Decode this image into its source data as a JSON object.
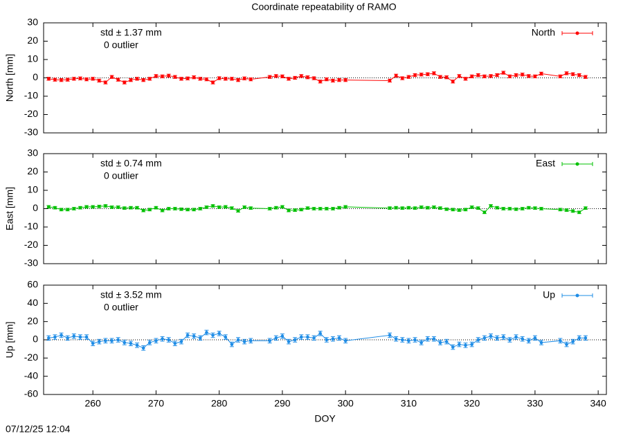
{
  "title": "Coordinate repeatability of RAMO",
  "timestamp": "07/12/25 12:04",
  "chart_data": [
    {
      "type": "errorbar-line",
      "ylabel": "North [mm]",
      "annotation": "std ± 1.37 mm",
      "outliers": "0 outlier",
      "xlim": [
        252.2,
        341.3
      ],
      "xticks": [
        260,
        270,
        280,
        290,
        300,
        310,
        320,
        330,
        340
      ],
      "xtick_labels": false,
      "ylim": [
        -30,
        30
      ],
      "yticks": [
        -30,
        -20,
        -10,
        0,
        10,
        20,
        30
      ],
      "zero_line": true,
      "legend": "top-right",
      "x": [
        253,
        254,
        255,
        256,
        257,
        258,
        259,
        260,
        261,
        262,
        263,
        264,
        265,
        266,
        267,
        268,
        269,
        270,
        271,
        272,
        273,
        274,
        275,
        276,
        277,
        278,
        279,
        280,
        281,
        282,
        283,
        284,
        285,
        288,
        289,
        290,
        291,
        292,
        293,
        294,
        295,
        296,
        297,
        298,
        299,
        300,
        307,
        308,
        309,
        310,
        311,
        312,
        313,
        314,
        315,
        316,
        317,
        318,
        319,
        320,
        321,
        322,
        323,
        324,
        325,
        326,
        327,
        328,
        329,
        330,
        331,
        334,
        335,
        336,
        337,
        338
      ],
      "series": [
        {
          "name": "North",
          "color": "#ff0000",
          "error": 0.8,
          "values": [
            -0.5,
            -1,
            -1.2,
            -1,
            -0.5,
            -0.3,
            -0.8,
            -0.5,
            -1.5,
            -2.5,
            0.5,
            -1,
            -2.5,
            -1.2,
            -0.5,
            -1.2,
            -0.5,
            1,
            0.8,
            1.2,
            0.5,
            -0.5,
            -0.3,
            0.3,
            -0.5,
            -0.8,
            -2.5,
            -0.2,
            -0.5,
            -0.5,
            -1.2,
            -0.3,
            -0.8,
            0.5,
            1,
            0.8,
            -0.5,
            0,
            1,
            0.3,
            -0.2,
            -2,
            -0.8,
            -1.5,
            -1.2,
            -1.2,
            -1.5,
            1.2,
            -0.2,
            0.5,
            1.5,
            1.8,
            2,
            2.5,
            0.5,
            0.3,
            -2,
            1,
            -0.5,
            0.8,
            1.5,
            0.8,
            1,
            1.5,
            2.8,
            0.8,
            1.5,
            1.8,
            1,
            0.8,
            2.3,
            0.8,
            2.5,
            2,
            1.5,
            0.5
          ]
        }
      ]
    },
    {
      "type": "errorbar-line",
      "ylabel": "East [mm]",
      "annotation": "std ± 0.74 mm",
      "outliers": "0 outlier",
      "xlim": [
        252.2,
        341.3
      ],
      "xticks": [
        260,
        270,
        280,
        290,
        300,
        310,
        320,
        330,
        340
      ],
      "xtick_labels": false,
      "ylim": [
        -30,
        30
      ],
      "yticks": [
        -30,
        -20,
        -10,
        0,
        10,
        20,
        30
      ],
      "zero_line": true,
      "legend": "top-right",
      "x": [
        253,
        254,
        255,
        256,
        257,
        258,
        259,
        260,
        261,
        262,
        263,
        264,
        265,
        266,
        267,
        268,
        269,
        270,
        271,
        272,
        273,
        274,
        275,
        276,
        277,
        278,
        279,
        280,
        281,
        282,
        283,
        284,
        285,
        288,
        289,
        290,
        291,
        292,
        293,
        294,
        295,
        296,
        297,
        298,
        299,
        300,
        307,
        308,
        309,
        310,
        311,
        312,
        313,
        314,
        315,
        316,
        317,
        318,
        319,
        320,
        321,
        322,
        323,
        324,
        325,
        326,
        327,
        328,
        329,
        330,
        331,
        334,
        335,
        336,
        337,
        338
      ],
      "series": [
        {
          "name": "East",
          "color": "#00c000",
          "error": 0.7,
          "values": [
            1,
            0.5,
            -0.5,
            -0.5,
            0,
            0.5,
            1,
            1,
            1.2,
            1.5,
            0.8,
            0.8,
            0.3,
            0.5,
            0.5,
            -1,
            -0.5,
            0.5,
            -1,
            0,
            0,
            -0.3,
            -0.5,
            -0.5,
            0,
            0.8,
            1.5,
            0.8,
            1,
            0.3,
            -1.2,
            0.8,
            0.3,
            0,
            0.5,
            1,
            -1,
            -0.8,
            -0.5,
            0.3,
            0,
            0,
            0,
            0,
            0.5,
            1,
            0.3,
            0.5,
            0.3,
            0.5,
            0.3,
            0.8,
            0.5,
            0.8,
            0.3,
            -0.3,
            -0.5,
            -0.8,
            -0.5,
            0.8,
            0.3,
            -2,
            1.5,
            0.5,
            0,
            0,
            -0.3,
            0,
            0.5,
            0.3,
            0,
            -0.5,
            -0.8,
            -1.3,
            -2,
            0.3
          ]
        }
      ]
    },
    {
      "type": "errorbar-line",
      "ylabel": "Up [mm]",
      "annotation": "std ± 3.52 mm",
      "outliers": "0 outlier",
      "xlabel": "DOY",
      "xlim": [
        252.2,
        341.3
      ],
      "xticks": [
        260,
        270,
        280,
        290,
        300,
        310,
        320,
        330,
        340
      ],
      "xtick_labels": true,
      "ylim": [
        -60,
        60
      ],
      "yticks": [
        -60,
        -40,
        -20,
        0,
        20,
        40,
        60
      ],
      "zero_line": true,
      "legend": "top-right",
      "x": [
        253,
        254,
        255,
        256,
        257,
        258,
        259,
        260,
        261,
        262,
        263,
        264,
        265,
        266,
        267,
        268,
        269,
        270,
        271,
        272,
        273,
        274,
        275,
        276,
        277,
        278,
        279,
        280,
        281,
        282,
        283,
        284,
        285,
        288,
        289,
        290,
        291,
        292,
        293,
        294,
        295,
        296,
        297,
        298,
        299,
        300,
        307,
        308,
        309,
        310,
        311,
        312,
        313,
        314,
        315,
        316,
        317,
        318,
        319,
        320,
        321,
        322,
        323,
        324,
        325,
        326,
        327,
        328,
        329,
        330,
        331,
        334,
        335,
        336,
        337,
        338
      ],
      "series": [
        {
          "name": "Up",
          "color": "#1e8ce6",
          "error": 2.5,
          "values": [
            2,
            3,
            5,
            2,
            4,
            3,
            3,
            -4,
            -2,
            -1,
            -1,
            0,
            -3,
            -4,
            -6,
            -9,
            -3,
            -1,
            1,
            0,
            -4,
            -2,
            5,
            4,
            2,
            8,
            5,
            7,
            3,
            -5,
            0,
            -2,
            -1,
            -1,
            2,
            4,
            -2,
            0,
            3,
            3,
            2,
            7,
            0,
            1,
            2,
            -1,
            5,
            1,
            0,
            -1,
            0,
            -3,
            1,
            1,
            -3,
            -2,
            -8,
            -5,
            -6,
            -5,
            0,
            2,
            4,
            2,
            3,
            0,
            3,
            1,
            -1,
            2,
            -3,
            -1,
            -5,
            -2,
            2,
            2
          ]
        }
      ]
    }
  ]
}
